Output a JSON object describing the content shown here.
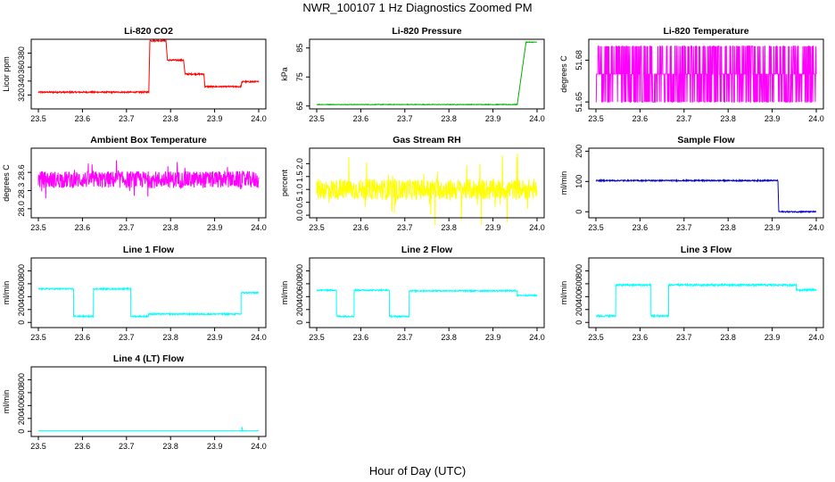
{
  "figure": {
    "title": "NWR_100107  1 Hz Diagnostics Zoomed PM",
    "xlabel": "Hour of Day (UTC)"
  },
  "chart_data": [
    {
      "type": "line",
      "title": "Li-820 CO2",
      "ylabel": "Licor ppm",
      "color": "#ff0000",
      "xlim": [
        23.5,
        24.0
      ],
      "ylim": [
        300,
        400
      ],
      "x_ticks": [
        "23.5",
        "23.6",
        "23.7",
        "23.8",
        "23.9",
        "24.0"
      ],
      "y_ticks": [
        "320",
        "340",
        "360",
        "380"
      ],
      "segments": [
        [
          23.5,
          23.751,
          324
        ],
        [
          23.753,
          23.79,
          398
        ],
        [
          23.793,
          23.83,
          370
        ],
        [
          23.833,
          23.876,
          350
        ],
        [
          23.878,
          23.96,
          332
        ],
        [
          23.962,
          24.0,
          339
        ]
      ],
      "noise": 1
    },
    {
      "type": "line",
      "title": "Li-820 Pressure",
      "ylabel": "kPa",
      "color": "#00b000",
      "xlim": [
        23.5,
        24.0
      ],
      "ylim": [
        64,
        88
      ],
      "x_ticks": [
        "23.5",
        "23.6",
        "23.7",
        "23.8",
        "23.9",
        "24.0"
      ],
      "y_ticks": [
        "65",
        "75",
        "85"
      ],
      "segments": [
        [
          23.5,
          23.955,
          65.5
        ],
        [
          23.975,
          24.0,
          87
        ]
      ],
      "noise": 0.1
    },
    {
      "type": "line",
      "title": "Li-820 Temperature",
      "ylabel": "degrees C",
      "color": "#ff00ff",
      "xlim": [
        23.5,
        24.0
      ],
      "ylim": [
        51.645,
        51.695
      ],
      "x_ticks": [
        "23.5",
        "23.6",
        "23.7",
        "23.8",
        "23.9",
        "24.0"
      ],
      "y_ticks": [
        "51.65",
        "51.68"
      ],
      "levels": [
        51.65,
        51.67,
        51.69
      ]
    },
    {
      "type": "line",
      "title": "Ambient Box Temperature",
      "ylabel": "degrees C",
      "color": "#ff00ff",
      "xlim": [
        23.5,
        24.0
      ],
      "ylim": [
        27.85,
        29.0
      ],
      "x_ticks": [
        "23.5",
        "23.6",
        "23.7",
        "23.8",
        "23.9",
        "24.0"
      ],
      "y_ticks": [
        "28.0",
        "28.3",
        "28.6"
      ],
      "segments": [
        [
          23.5,
          24.0,
          28.48
        ]
      ],
      "noise": 0.14
    },
    {
      "type": "line",
      "title": "Gas Stream RH",
      "ylabel": "percent",
      "color": "#ffff00",
      "xlim": [
        23.5,
        24.0
      ],
      "ylim": [
        -0.1,
        2.6
      ],
      "x_ticks": [
        "23.5",
        "23.6",
        "23.7",
        "23.8",
        "23.9",
        "24.0"
      ],
      "y_ticks": [
        "0.0",
        "0.5",
        "1.0",
        "1.5",
        "2.0"
      ],
      "segments": [
        [
          23.5,
          24.0,
          1.0
        ]
      ],
      "noise": 0.4
    },
    {
      "type": "line",
      "title": "Sample Flow",
      "ylabel": "ml/min",
      "color": "#0000cc",
      "xlim": [
        23.5,
        24.0
      ],
      "ylim": [
        -20,
        210
      ],
      "x_ticks": [
        "23.5",
        "23.6",
        "23.7",
        "23.8",
        "23.9",
        "24.0"
      ],
      "y_ticks": [
        "0",
        "100",
        "200"
      ],
      "segments": [
        [
          23.5,
          23.913,
          103
        ],
        [
          23.915,
          24.0,
          0
        ]
      ],
      "noise": 2
    },
    {
      "type": "line",
      "title": "Line 1 Flow",
      "ylabel": "ml/min",
      "color": "#00ffff",
      "xlim": [
        23.5,
        24.0
      ],
      "ylim": [
        -80,
        1000
      ],
      "x_ticks": [
        "23.5",
        "23.6",
        "23.7",
        "23.8",
        "23.9",
        "24.0"
      ],
      "y_ticks": [
        "0",
        "200",
        "400",
        "600",
        "800"
      ],
      "segments": [
        [
          23.5,
          23.58,
          520
        ],
        [
          23.58,
          23.625,
          95
        ],
        [
          23.625,
          23.71,
          520
        ],
        [
          23.71,
          23.75,
          95
        ],
        [
          23.75,
          23.96,
          130
        ],
        [
          23.96,
          24.0,
          460
        ]
      ],
      "noise": 10
    },
    {
      "type": "line",
      "title": "Line 2 Flow",
      "ylabel": "ml/min",
      "color": "#00ffff",
      "xlim": [
        23.5,
        24.0
      ],
      "ylim": [
        -80,
        1000
      ],
      "x_ticks": [
        "23.5",
        "23.6",
        "23.7",
        "23.8",
        "23.9",
        "24.0"
      ],
      "y_ticks": [
        "0",
        "200",
        "400",
        "600",
        "800"
      ],
      "segments": [
        [
          23.5,
          23.545,
          500
        ],
        [
          23.545,
          23.585,
          95
        ],
        [
          23.585,
          23.665,
          500
        ],
        [
          23.665,
          23.71,
          95
        ],
        [
          23.71,
          23.955,
          490
        ],
        [
          23.955,
          24.0,
          420
        ]
      ],
      "noise": 10
    },
    {
      "type": "line",
      "title": "Line 3 Flow",
      "ylabel": "ml/min",
      "color": "#00ffff",
      "xlim": [
        23.5,
        24.0
      ],
      "ylim": [
        -80,
        1000
      ],
      "x_ticks": [
        "23.5",
        "23.6",
        "23.7",
        "23.8",
        "23.9",
        "24.0"
      ],
      "y_ticks": [
        "0",
        "200",
        "400",
        "600",
        "800"
      ],
      "segments": [
        [
          23.5,
          23.545,
          100
        ],
        [
          23.545,
          23.625,
          580
        ],
        [
          23.625,
          23.665,
          100
        ],
        [
          23.665,
          23.955,
          580
        ],
        [
          23.955,
          24.0,
          505
        ]
      ],
      "noise": 14
    },
    {
      "type": "line",
      "title": "Line 4 (LT) Flow",
      "ylabel": "ml/min",
      "color": "#00ffff",
      "xlim": [
        23.5,
        24.0
      ],
      "ylim": [
        -80,
        1000
      ],
      "x_ticks": [
        "23.5",
        "23.6",
        "23.7",
        "23.8",
        "23.9",
        "24.0"
      ],
      "y_ticks": [
        "0",
        "200",
        "400",
        "600",
        "800"
      ],
      "segments": [
        [
          23.5,
          24.0,
          8
        ]
      ],
      "noise": 1
    }
  ]
}
